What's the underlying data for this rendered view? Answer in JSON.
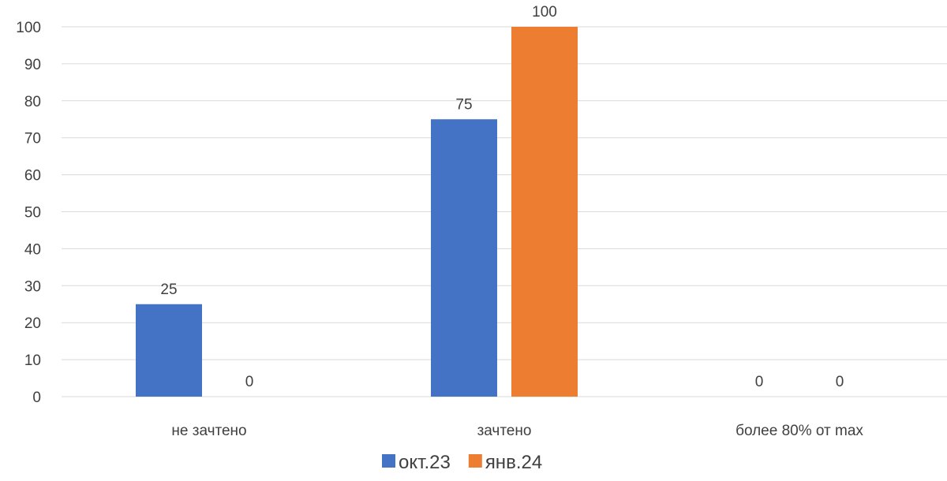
{
  "chart_data": {
    "type": "bar",
    "categories": [
      "не зачтено",
      "зачтено",
      "более 80% от max"
    ],
    "series": [
      {
        "name": "окт.23",
        "values": [
          25,
          75,
          0
        ],
        "color": "#4472C4"
      },
      {
        "name": "янв.24",
        "values": [
          0,
          100,
          0
        ],
        "color": "#ED7D31"
      }
    ],
    "y_ticks": [
      "0",
      "10",
      "20",
      "30",
      "40",
      "50",
      "60",
      "70",
      "80",
      "90",
      "100"
    ],
    "ylim": [
      0,
      100
    ],
    "grid": true,
    "legend": "bottom",
    "data_labels": true
  }
}
